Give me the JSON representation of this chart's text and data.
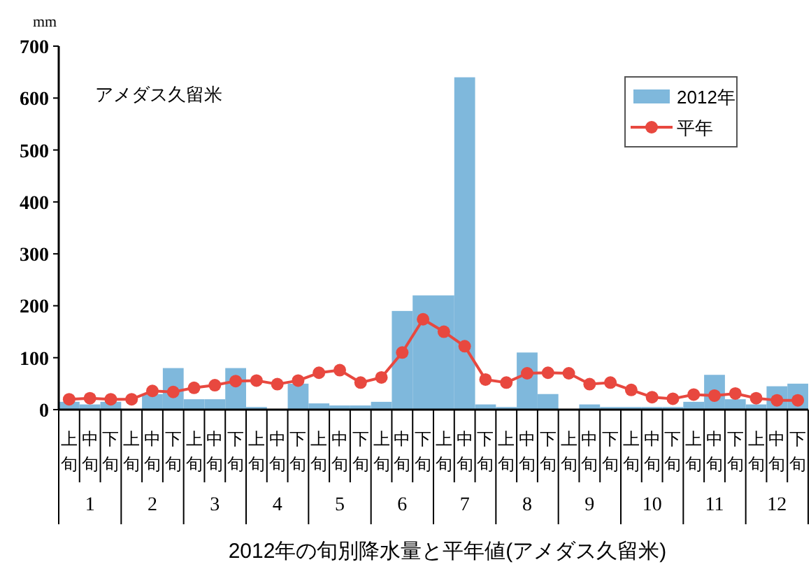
{
  "chart_data": {
    "type": "bar",
    "title": "2012年の旬別降水量と平年値(アメダス久留米)",
    "ylabel": "mm",
    "categories": [
      "上旬",
      "中旬",
      "下旬",
      "上旬",
      "中旬",
      "下旬",
      "上旬",
      "中旬",
      "下旬",
      "上旬",
      "中旬",
      "下旬",
      "上旬",
      "中旬",
      "下旬",
      "上旬",
      "中旬",
      "下旬",
      "上旬",
      "中旬",
      "下旬",
      "上旬",
      "中旬",
      "下旬",
      "上旬",
      "中旬",
      "下旬",
      "上旬",
      "中旬",
      "下旬",
      "上旬",
      "中旬",
      "下旬",
      "上旬",
      "中旬",
      "下旬"
    ],
    "annotations": [
      "アメダス久留米",
      "1",
      "2",
      "3",
      "4",
      "5",
      "6",
      "7",
      "8",
      "9",
      "10",
      "11",
      "12"
    ],
    "series": [
      {
        "name": "2012年",
        "color": "#7fb8dc",
        "values": [
          15,
          10,
          15,
          null,
          30,
          80,
          20,
          20,
          80,
          5,
          null,
          50,
          12,
          8,
          8,
          15,
          190,
          220,
          220,
          640,
          10,
          5,
          110,
          30,
          null,
          10,
          5,
          5,
          5,
          5,
          15,
          67,
          20,
          10,
          45,
          50
        ]
      },
      {
        "name": "平年",
        "type": "line",
        "color": "#e8483f",
        "marker": "circle",
        "values": [
          20,
          22,
          20,
          20,
          36,
          34,
          42,
          47,
          55,
          56,
          49,
          56,
          71,
          76,
          52,
          62,
          110,
          174,
          150,
          122,
          58,
          52,
          70,
          71,
          70,
          49,
          52,
          38,
          24,
          21,
          29,
          27,
          31,
          22,
          18,
          18
        ]
      }
    ],
    "ylim": [
      0,
      700
    ],
    "yticks": [
      0,
      100,
      200,
      300,
      400,
      500,
      600,
      700
    ],
    "grid": false,
    "legend": "top right"
  }
}
